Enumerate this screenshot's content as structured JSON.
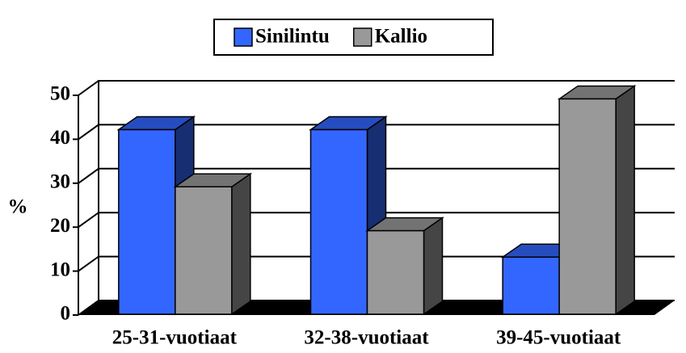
{
  "chart_data": {
    "type": "bar",
    "categories": [
      "25-31-vuotiaat",
      "32-38-vuotiaat",
      "39-45-vuotiaat"
    ],
    "series": [
      {
        "name": "Sinilintu",
        "color": "#3366ff",
        "values": [
          42,
          42,
          13
        ]
      },
      {
        "name": "Kallio",
        "color": "#999999",
        "values": [
          29,
          19,
          49
        ]
      }
    ],
    "ylabel": "%",
    "ylim": [
      0,
      50
    ],
    "yticks": [
      0,
      10,
      20,
      30,
      40,
      50
    ],
    "grid": true,
    "legend": "top"
  }
}
